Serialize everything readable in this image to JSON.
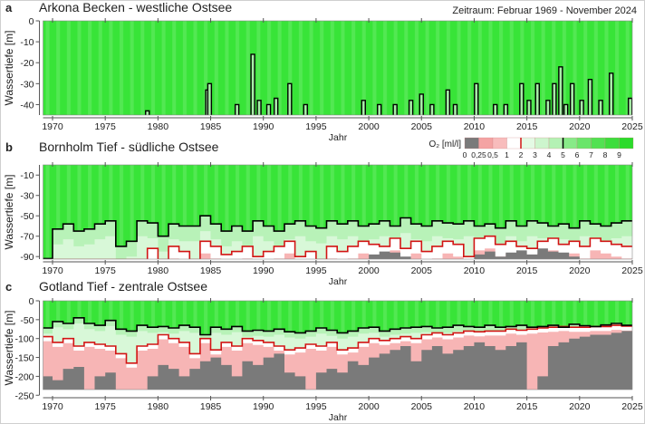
{
  "period_label": "Zeitraum: Februar 1969 - November 2024",
  "legend": {
    "title": "O₂ [ml/l]",
    "labels": [
      "0",
      "0,25",
      "0,5",
      "1",
      "2",
      "3",
      "4",
      "5",
      "6",
      "7",
      "8",
      "9"
    ],
    "colors": [
      "#7a7a7a",
      "#f4a3a3",
      "#f8bcbc",
      "#ffffff",
      "#e4fae4",
      "#cdf5cd",
      "#b4f1b4",
      "#88ea88",
      "#6ae56a",
      "#52e152",
      "#3ddd3d",
      "#2bdb2b"
    ],
    "isoline_2_color": "#d21414",
    "isoline_5_color": "#000000"
  },
  "chart_data": [
    {
      "panel": "a",
      "type": "heatmap",
      "title": "Arkona Becken - westliche Ostsee",
      "xlabel": "Jahr",
      "ylabel": "Wassertiefe [m]",
      "xlim": [
        1969.1,
        2025
      ],
      "ylim": [
        -45,
        0
      ],
      "xticks": [
        "1970",
        "1975",
        "1980",
        "1985",
        "1990",
        "1995",
        "2000",
        "2005",
        "2010",
        "2015",
        "2020",
        "2025"
      ],
      "yticks": [
        {
          "v": 0,
          "t": "0"
        },
        {
          "v": -10,
          "t": "-10"
        },
        {
          "v": -20,
          "t": "-20"
        },
        {
          "v": -30,
          "t": "-30"
        },
        {
          "v": -40,
          "t": "-40"
        }
      ],
      "isoline_5_events": [
        [
          1979.0,
          -43
        ],
        [
          1984.7,
          -33
        ],
        [
          1984.9,
          -30
        ],
        [
          1987.5,
          -40
        ],
        [
          1989.0,
          -16
        ],
        [
          1989.6,
          -38
        ],
        [
          1990.5,
          -40
        ],
        [
          1991.2,
          -37
        ],
        [
          1992.5,
          -30
        ],
        [
          1994.0,
          -40
        ],
        [
          1999.5,
          -38
        ],
        [
          2001.0,
          -40
        ],
        [
          2002.5,
          -40
        ],
        [
          2004.0,
          -38
        ],
        [
          2005.0,
          -35
        ],
        [
          2006.0,
          -40
        ],
        [
          2007.5,
          -33
        ],
        [
          2008.2,
          -40
        ],
        [
          2010.2,
          -30
        ],
        [
          2012.0,
          -40
        ],
        [
          2013.0,
          -40
        ],
        [
          2014.5,
          -30
        ],
        [
          2015.2,
          -38
        ],
        [
          2016.0,
          -30
        ],
        [
          2017.0,
          -38
        ],
        [
          2017.6,
          -30
        ],
        [
          2018.2,
          -22
        ],
        [
          2018.7,
          -40
        ],
        [
          2019.3,
          -30
        ],
        [
          2020.2,
          -38
        ],
        [
          2021.0,
          -28
        ],
        [
          2022.0,
          -38
        ],
        [
          2023.0,
          -25
        ],
        [
          2024.8,
          -37
        ]
      ]
    },
    {
      "panel": "b",
      "type": "heatmap",
      "title": "Bornholm Tief - südliche Ostsee",
      "xlabel": "Jahr",
      "ylabel": "Wassertiefe [m]",
      "xlim": [
        1969.1,
        2025
      ],
      "ylim": [
        -92.5,
        0
      ],
      "xticks": [
        "1970",
        "1975",
        "1980",
        "1985",
        "1990",
        "1995",
        "2000",
        "2005",
        "2010",
        "2015",
        "2020",
        "2025"
      ],
      "yticks": [
        {
          "v": -10,
          "t": "-10"
        },
        {
          "v": -30,
          "t": "-30"
        },
        {
          "v": -50,
          "t": "-50"
        },
        {
          "v": -70,
          "t": "-70"
        },
        {
          "v": -90,
          "t": "-90"
        }
      ],
      "x_start": 1969,
      "isoline_5": [
        -92,
        -63,
        -58,
        -65,
        -63,
        -58,
        -55,
        -80,
        -75,
        -55,
        -57,
        -70,
        -58,
        -60,
        -60,
        -50,
        -58,
        -65,
        -60,
        -65,
        -55,
        -60,
        -65,
        -58,
        -55,
        -60,
        -62,
        -55,
        -58,
        -55,
        -60,
        -58,
        -55,
        -60,
        -52,
        -58,
        -60,
        -55,
        -57,
        -58,
        -55,
        -60,
        -58,
        -62,
        -55,
        -60,
        -55,
        -57,
        -60,
        -58,
        -62,
        -55,
        -58,
        -60,
        -57,
        -55
      ],
      "isoline_2": [
        -93,
        -93,
        -93,
        -93,
        -93,
        -93,
        -93,
        -93,
        -93,
        -93,
        -82,
        -93,
        -80,
        -85,
        -93,
        -75,
        -80,
        -88,
        -85,
        -80,
        -90,
        -85,
        -80,
        -75,
        -90,
        -85,
        -93,
        -80,
        -85,
        -80,
        -75,
        -78,
        -80,
        -72,
        -82,
        -75,
        -85,
        -80,
        -75,
        -78,
        -90,
        -72,
        -70,
        -78,
        -75,
        -80,
        -82,
        -75,
        -72,
        -78,
        -75,
        -80,
        -72,
        -75,
        -78,
        -80
      ],
      "anoxic_top": [
        -93,
        -93,
        -93,
        -93,
        -93,
        -93,
        -93,
        -93,
        -93,
        -93,
        -93,
        -93,
        -93,
        -93,
        -93,
        -93,
        -93,
        -93,
        -93,
        -93,
        -93,
        -93,
        -93,
        -93,
        -93,
        -93,
        -93,
        -93,
        -93,
        -93,
        -93,
        -88,
        -85,
        -86,
        -90,
        -93,
        -93,
        -93,
        -93,
        -93,
        -93,
        -88,
        -85,
        -90,
        -86,
        -84,
        -88,
        -82,
        -85,
        -86,
        -90,
        -93,
        -93,
        -93,
        -93,
        -93
      ]
    },
    {
      "panel": "c",
      "type": "heatmap",
      "title": "Gotland Tief - zentrale Ostsee",
      "xlabel": "Jahr",
      "ylabel": "Wassertiefe [m]",
      "xlim": [
        1969.1,
        2025
      ],
      "ylim": [
        -235,
        0
      ],
      "xticks": [
        "1970",
        "1975",
        "1980",
        "1985",
        "1990",
        "1995",
        "2000",
        "2005",
        "2010",
        "2015",
        "2020",
        "2025"
      ],
      "yticks": [
        {
          "v": 0,
          "t": "0"
        },
        {
          "v": -50,
          "t": "-50"
        },
        {
          "v": -100,
          "t": "-100"
        },
        {
          "v": -150,
          "t": "-150"
        },
        {
          "v": -200,
          "t": "-200"
        },
        {
          "v": -250,
          "t": "-250"
        }
      ],
      "x_start": 1969,
      "isoline_5": [
        -72,
        -55,
        -60,
        -45,
        -60,
        -65,
        -52,
        -75,
        -80,
        -65,
        -70,
        -68,
        -72,
        -65,
        -70,
        -90,
        -70,
        -75,
        -68,
        -80,
        -78,
        -80,
        -75,
        -82,
        -85,
        -80,
        -72,
        -78,
        -85,
        -80,
        -72,
        -70,
        -80,
        -75,
        -72,
        -70,
        -68,
        -72,
        -70,
        -65,
        -68,
        -70,
        -65,
        -70,
        -68,
        -65,
        -70,
        -68,
        -65,
        -70,
        -62,
        -66,
        -68,
        -64,
        -60,
        -65
      ],
      "isoline_2": [
        -95,
        -110,
        -100,
        -120,
        -110,
        -115,
        -120,
        -140,
        -165,
        -120,
        -115,
        -90,
        -100,
        -110,
        -140,
        -100,
        -130,
        -110,
        -120,
        -100,
        -105,
        -110,
        -120,
        -130,
        -125,
        -115,
        -120,
        -110,
        -130,
        -125,
        -110,
        -100,
        -105,
        -100,
        -95,
        -100,
        -90,
        -85,
        -90,
        -85,
        -80,
        -82,
        -80,
        -80,
        -75,
        -78,
        -75,
        -72,
        -70,
        -68,
        -70,
        -70,
        -68,
        -68,
        -65,
        -67
      ],
      "anoxic_top": [
        -200,
        -210,
        -180,
        -175,
        -235,
        -200,
        -190,
        -235,
        -235,
        -235,
        -200,
        -170,
        -180,
        -200,
        -180,
        -160,
        -150,
        -170,
        -200,
        -160,
        -170,
        -150,
        -140,
        -190,
        -200,
        -235,
        -190,
        -180,
        -190,
        -160,
        -170,
        -150,
        -140,
        -130,
        -120,
        -160,
        -130,
        -120,
        -140,
        -130,
        -120,
        -110,
        -120,
        -130,
        -120,
        -110,
        -235,
        -200,
        -120,
        -110,
        -100,
        -95,
        -90,
        -90,
        -85,
        -80
      ]
    }
  ]
}
